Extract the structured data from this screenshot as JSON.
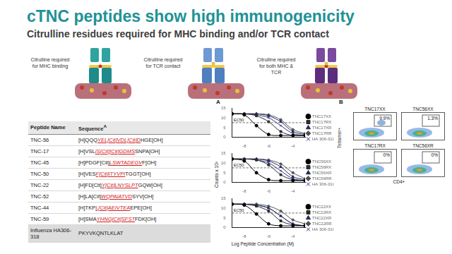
{
  "header": {
    "title": "cTNC peptides show high immunogenicity",
    "subtitle": "Citrulline residues required for MHC binding and/or TCR contact"
  },
  "diagrams": [
    {
      "label": "Citrulline required for MHC binding"
    },
    {
      "label": "Citrulline required for TCR contact"
    },
    {
      "label": "Citrulline required for both MHC & TCR"
    }
  ],
  "table": {
    "columns": [
      "Peptide Name",
      "Sequence"
    ],
    "column_note": "A",
    "rows": [
      {
        "name": "TNC-56",
        "sequence": {
          "pre": "[H]QQQ",
          "core": "YEL[Cit]VDL[Cit]D",
          "post": "HGE[OH]"
        }
      },
      {
        "name": "TNC-17",
        "sequence": {
          "pre": "[H]VSL",
          "core": "IS[Cit][Cit]GDMS",
          "post": "SNPA[OH]"
        }
      },
      {
        "name": "TNC-45",
        "sequence": {
          "pre": "[H]PDGF[Cit]",
          "core": "LSWTADEGV",
          "post": "F[OH]"
        }
      },
      {
        "name": "TNC-50",
        "sequence": {
          "pre": "[H]VES",
          "core": "F[Cit]ITYVPI",
          "post": "TGGT[OH]"
        }
      },
      {
        "name": "TNC-22",
        "sequence": {
          "pre": "[H]FD[Cit]",
          "core": "Y[Cit]LNYSLPT",
          "post": "GQW[OH]"
        }
      },
      {
        "name": "TNC-52",
        "sequence": {
          "pre": "[H]LA[Cit]",
          "core": "WQPAIATVD",
          "post": "SYV[OH]"
        }
      },
      {
        "name": "TNC-44",
        "sequence": {
          "pre": "[H]TKP",
          "core": "L[Cit]AEIVTEA",
          "post": "EPE[OH]"
        }
      },
      {
        "name": "TNC-59",
        "sequence": {
          "pre": "[H]SMA",
          "core": "YHNG[Cit]SFST",
          "post": "FDK[OH]"
        }
      },
      {
        "name": "Influenza HA306-318",
        "sequence": {
          "pre": "PKYVKQNTLKLAT"
        }
      }
    ]
  },
  "panel_a": {
    "label": "A",
    "y_axis_label": "Counts x 10³",
    "x_axis_label": "Log Peptide Concentration (M)"
  },
  "chart_data": [
    {
      "type": "line",
      "x": [
        -9,
        -8,
        -7,
        -6,
        -5,
        -4,
        -3
      ],
      "xlim": [
        -9,
        -3
      ],
      "xticks": [
        -8,
        -6,
        -4
      ],
      "ylim": [
        0,
        15
      ],
      "yticks": [
        0,
        5,
        10,
        15
      ],
      "grid": false,
      "legend": "right",
      "annotations": [
        {
          "text": "EC50",
          "y": 7.5
        }
      ],
      "series": [
        {
          "name": "TNC17XX",
          "color": "#000000",
          "marker": "circle",
          "values": [
            12,
            11.5,
            6,
            1.5,
            1,
            1,
            1
          ]
        },
        {
          "name": "TNC17RX",
          "color": "#2b2b2b",
          "marker": "square",
          "values": [
            12,
            12,
            11,
            8,
            3,
            1,
            1
          ]
        },
        {
          "name": "TNC17XR",
          "color": "#1f2a5a",
          "marker": "triangle",
          "values": [
            12,
            12,
            12,
            11,
            8,
            3,
            1.5
          ]
        },
        {
          "name": "TNC17RR",
          "color": "#555555",
          "marker": "diamond",
          "values": [
            12,
            12,
            12,
            11.5,
            9,
            4,
            2
          ]
        },
        {
          "name": "HA 306-318",
          "color": "#34348a",
          "marker": "cross",
          "values": [
            12,
            12,
            11.5,
            10,
            6,
            2,
            1
          ]
        }
      ]
    },
    {
      "type": "line",
      "x": [
        -9,
        -8,
        -7,
        -6,
        -5,
        -4,
        -3
      ],
      "xlim": [
        -9,
        -3
      ],
      "xticks": [
        -8,
        -6,
        -4
      ],
      "ylim": [
        0,
        15
      ],
      "yticks": [
        0,
        5,
        10,
        15
      ],
      "grid": false,
      "legend": "right",
      "annotations": [
        {
          "text": "EC50",
          "y": 7.5
        }
      ],
      "series": [
        {
          "name": "TNC56XX",
          "color": "#000000",
          "marker": "circle",
          "values": [
            12,
            11,
            5,
            1.5,
            1,
            1,
            1
          ]
        },
        {
          "name": "TNC56RX",
          "color": "#2b2b2b",
          "marker": "square",
          "values": [
            12,
            12,
            11.5,
            9,
            4,
            1.5,
            1
          ]
        },
        {
          "name": "TNC56XR",
          "color": "#1f2a5a",
          "marker": "triangle",
          "values": [
            12,
            12,
            12,
            11,
            8,
            3,
            1.5
          ]
        },
        {
          "name": "TNC56RR",
          "color": "#555555",
          "marker": "diamond",
          "values": [
            12,
            12,
            12,
            11.5,
            9.5,
            5,
            2
          ]
        },
        {
          "name": "HA 306-318",
          "color": "#34348a",
          "marker": "cross",
          "values": [
            12,
            12,
            11.5,
            10,
            6,
            2,
            1
          ]
        }
      ]
    },
    {
      "type": "line",
      "x": [
        -9,
        -8,
        -7,
        -6,
        -5,
        -4,
        -3
      ],
      "xlim": [
        -9,
        -3
      ],
      "xticks": [
        -8,
        -6,
        -4
      ],
      "ylim": [
        0,
        15
      ],
      "yticks": [
        0,
        5,
        10,
        15
      ],
      "grid": false,
      "legend": "right",
      "annotations": [
        {
          "text": "EC50",
          "y": 7.5
        }
      ],
      "series": [
        {
          "name": "TNC22XX",
          "color": "#000000",
          "marker": "circle",
          "values": [
            12,
            11.5,
            7,
            2,
            1,
            1,
            1
          ]
        },
        {
          "name": "TNC22RX",
          "color": "#2b2b2b",
          "marker": "square",
          "values": [
            12,
            12,
            11,
            8.5,
            3.5,
            1.5,
            1
          ]
        },
        {
          "name": "TNC22XR",
          "color": "#1f2a5a",
          "marker": "triangle",
          "values": [
            12,
            12,
            11.5,
            10,
            6,
            2,
            1
          ]
        },
        {
          "name": "TNC22RR",
          "color": "#555555",
          "marker": "diamond",
          "values": [
            12,
            12,
            12,
            11,
            8.5,
            4,
            2
          ]
        },
        {
          "name": "HA 306-318",
          "color": "#34348a",
          "marker": "cross",
          "values": [
            12,
            12,
            11.5,
            10,
            6,
            2,
            1
          ]
        }
      ]
    }
  ],
  "panel_b": {
    "label": "B",
    "y_axis_label": "Tetramer+",
    "x_axis_label": "CD4+",
    "plots": [
      {
        "title": "TNC17XX",
        "gate": "9.9%"
      },
      {
        "title": "TNC56XX",
        "gate": "1.3%"
      },
      {
        "title": "TNC17RX",
        "gate": "0%"
      },
      {
        "title": "TNC56XR",
        "gate": "0%"
      }
    ]
  }
}
